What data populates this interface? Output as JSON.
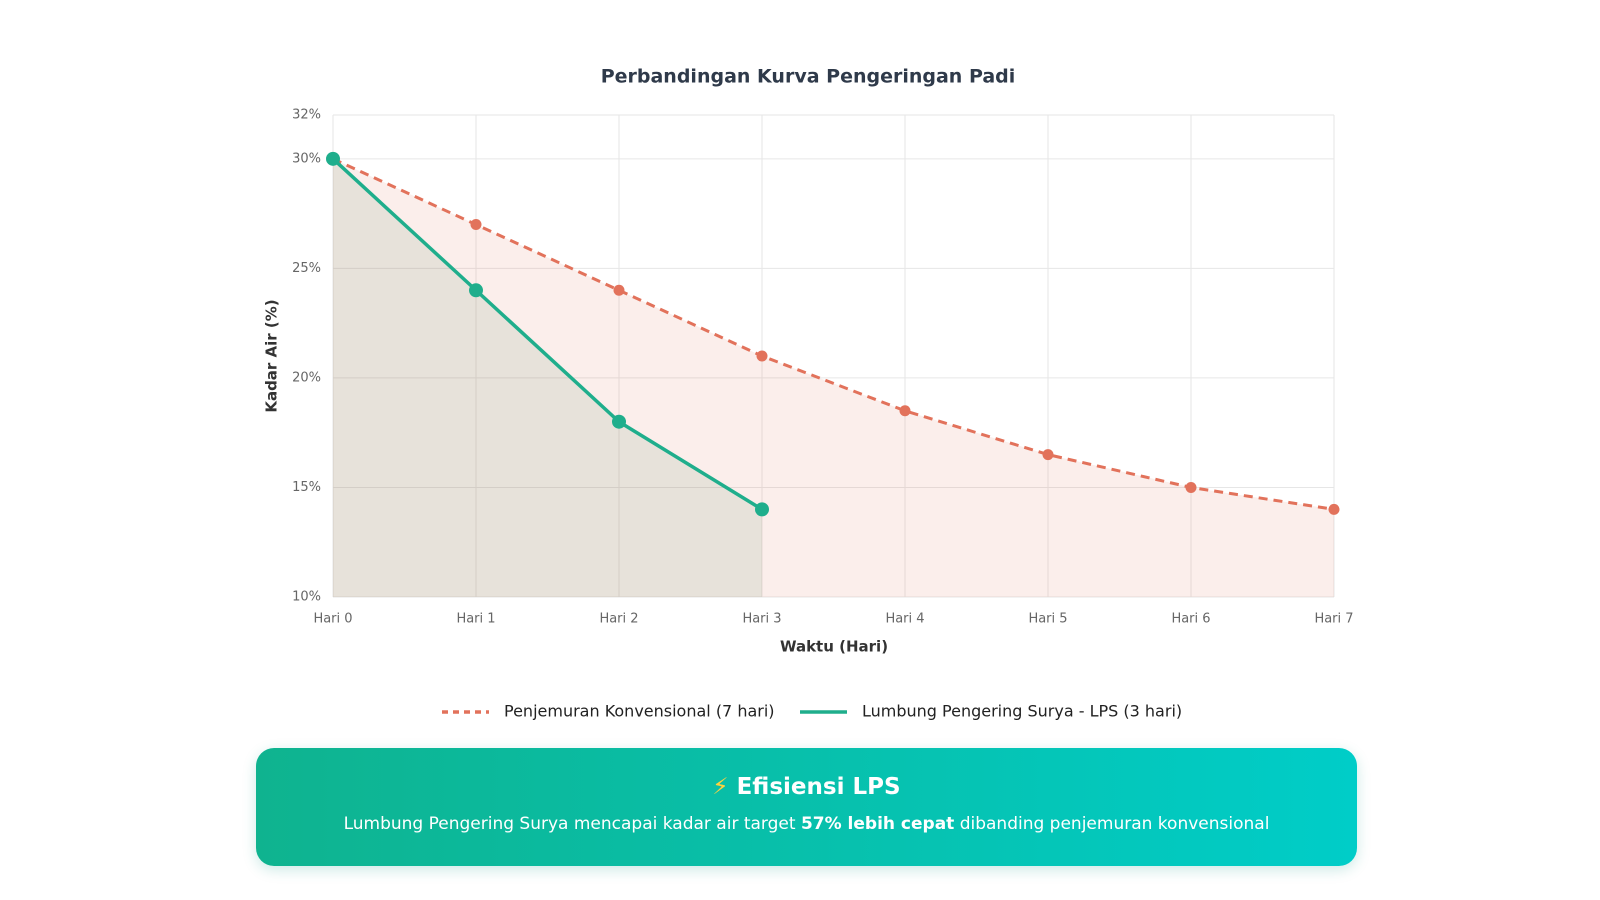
{
  "chart_data": {
    "type": "line",
    "title": "Perbandingan Kurva Pengeringan Padi",
    "x_label": "Waktu (Hari)",
    "y_label": "Kadar Air (%)",
    "categories": [
      "Hari 0",
      "Hari 1",
      "Hari 2",
      "Hari 3",
      "Hari 4",
      "Hari 5",
      "Hari 6",
      "Hari 7"
    ],
    "series": [
      {
        "name": "Penjemuran Konvensional (7 hari)",
        "color": "#e2725b",
        "dashed": true,
        "values": [
          30,
          27,
          24,
          21,
          18.5,
          16.5,
          15,
          14
        ]
      },
      {
        "name": "Lumbung Pengering Surya - LPS (3 hari)",
        "color": "#1fae8c",
        "dashed": false,
        "values": [
          30,
          24,
          18,
          14,
          null,
          null,
          null,
          null
        ]
      }
    ],
    "ylim": [
      10,
      32
    ],
    "yticks": [
      {
        "value": 10,
        "label": "10%"
      },
      {
        "value": 15,
        "label": "15%"
      },
      {
        "value": 20,
        "label": "20%"
      },
      {
        "value": 25,
        "label": "25%"
      },
      {
        "value": 30,
        "label": "30%"
      },
      {
        "value": 32,
        "label": "32%"
      }
    ],
    "grid": true,
    "legend": "bottom"
  },
  "banner": {
    "icon": "⚡",
    "title": "Efisiensi LPS",
    "text_before": "Lumbung Pengering Surya mencapai kadar air target ",
    "text_bold": "57% lebih cepat",
    "text_after": " dibanding penjemuran konvensional"
  }
}
